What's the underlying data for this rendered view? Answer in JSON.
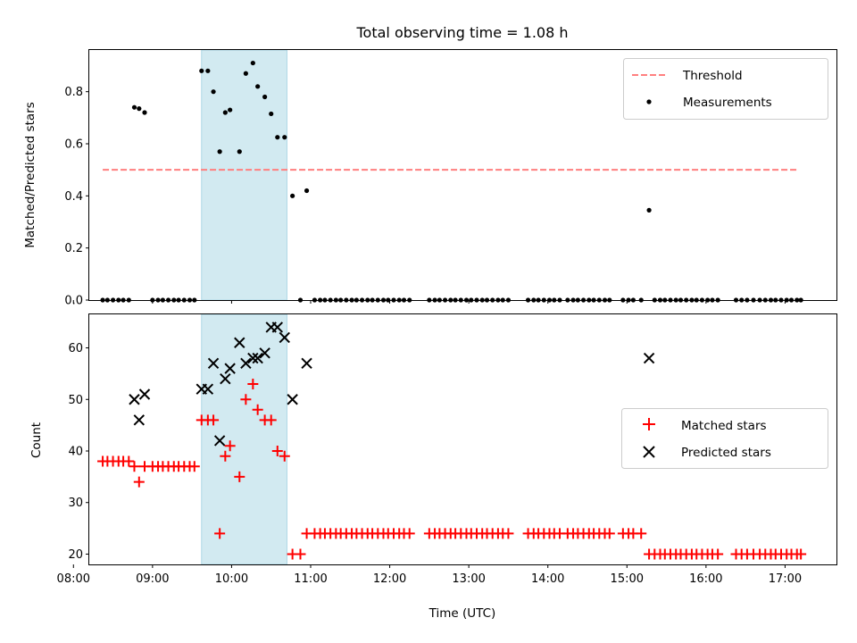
{
  "title": "Total observing time = 1.08 h",
  "colors": {
    "threshold": "#ff7f7f",
    "measurement": "#000000",
    "matched": "#ff0000",
    "predicted": "#000000",
    "shade": "#add8e6"
  },
  "chart_data": [
    {
      "type": "scatter",
      "ylabel": "Matched/Predicted stars",
      "xlabel": "",
      "xlim": [
        8.2,
        17.65
      ],
      "ylim": [
        0,
        0.96
      ],
      "yticks": [
        "0.0",
        "0.2",
        "0.4",
        "0.6",
        "0.8"
      ],
      "legend_position": "top-right",
      "shaded_span": [
        9.62,
        10.7
      ],
      "threshold": {
        "name": "Threshold",
        "y": 0.5,
        "x": [
          8.37,
          17.15
        ]
      },
      "series": [
        {
          "name": "Measurements",
          "points": [
            [
              8.37,
              0
            ],
            [
              8.43,
              0
            ],
            [
              8.5,
              0
            ],
            [
              8.57,
              0
            ],
            [
              8.63,
              0
            ],
            [
              8.7,
              0
            ],
            [
              8.77,
              0.74
            ],
            [
              8.83,
              0.735
            ],
            [
              8.9,
              0.72
            ],
            [
              9.0,
              0
            ],
            [
              9.07,
              0
            ],
            [
              9.13,
              0
            ],
            [
              9.2,
              0
            ],
            [
              9.27,
              0
            ],
            [
              9.33,
              0
            ],
            [
              9.4,
              0
            ],
            [
              9.47,
              0
            ],
            [
              9.53,
              0
            ],
            [
              9.62,
              0.88
            ],
            [
              9.7,
              0.88
            ],
            [
              9.77,
              0.8
            ],
            [
              9.85,
              0.57
            ],
            [
              9.92,
              0.72
            ],
            [
              9.98,
              0.73
            ],
            [
              10.1,
              0.57
            ],
            [
              10.18,
              0.87
            ],
            [
              10.27,
              0.91
            ],
            [
              10.33,
              0.82
            ],
            [
              10.42,
              0.78
            ],
            [
              10.5,
              0.715
            ],
            [
              10.58,
              0.625
            ],
            [
              10.67,
              0.625
            ],
            [
              10.77,
              0.4
            ],
            [
              10.87,
              0
            ],
            [
              10.95,
              0.42
            ],
            [
              11.05,
              0
            ],
            [
              11.12,
              0
            ],
            [
              11.18,
              0
            ],
            [
              11.25,
              0
            ],
            [
              11.32,
              0
            ],
            [
              11.38,
              0
            ],
            [
              11.45,
              0
            ],
            [
              11.52,
              0
            ],
            [
              11.58,
              0
            ],
            [
              11.65,
              0
            ],
            [
              11.72,
              0
            ],
            [
              11.78,
              0
            ],
            [
              11.85,
              0
            ],
            [
              11.92,
              0
            ],
            [
              11.98,
              0
            ],
            [
              12.05,
              0
            ],
            [
              12.12,
              0
            ],
            [
              12.18,
              0
            ],
            [
              12.25,
              0
            ],
            [
              12.5,
              0
            ],
            [
              12.57,
              0
            ],
            [
              12.63,
              0
            ],
            [
              12.7,
              0
            ],
            [
              12.77,
              0
            ],
            [
              12.83,
              0
            ],
            [
              12.9,
              0
            ],
            [
              12.97,
              0
            ],
            [
              13.03,
              0
            ],
            [
              13.1,
              0
            ],
            [
              13.17,
              0
            ],
            [
              13.23,
              0
            ],
            [
              13.3,
              0
            ],
            [
              13.37,
              0
            ],
            [
              13.43,
              0
            ],
            [
              13.5,
              0
            ],
            [
              13.75,
              0
            ],
            [
              13.82,
              0
            ],
            [
              13.88,
              0
            ],
            [
              13.95,
              0
            ],
            [
              14.02,
              0
            ],
            [
              14.08,
              0
            ],
            [
              14.15,
              0
            ],
            [
              14.25,
              0
            ],
            [
              14.32,
              0
            ],
            [
              14.38,
              0
            ],
            [
              14.45,
              0
            ],
            [
              14.52,
              0
            ],
            [
              14.58,
              0
            ],
            [
              14.65,
              0
            ],
            [
              14.72,
              0
            ],
            [
              14.78,
              0
            ],
            [
              14.95,
              0
            ],
            [
              15.02,
              0
            ],
            [
              15.08,
              0
            ],
            [
              15.18,
              0
            ],
            [
              15.28,
              0.345
            ],
            [
              15.35,
              0
            ],
            [
              15.42,
              0
            ],
            [
              15.48,
              0
            ],
            [
              15.55,
              0
            ],
            [
              15.62,
              0
            ],
            [
              15.68,
              0
            ],
            [
              15.75,
              0
            ],
            [
              15.82,
              0
            ],
            [
              15.88,
              0
            ],
            [
              15.95,
              0
            ],
            [
              16.02,
              0
            ],
            [
              16.08,
              0
            ],
            [
              16.15,
              0
            ],
            [
              16.38,
              0
            ],
            [
              16.45,
              0
            ],
            [
              16.52,
              0
            ],
            [
              16.6,
              0
            ],
            [
              16.68,
              0
            ],
            [
              16.75,
              0
            ],
            [
              16.82,
              0
            ],
            [
              16.88,
              0
            ],
            [
              16.95,
              0
            ],
            [
              17.02,
              0
            ],
            [
              17.08,
              0
            ],
            [
              17.15,
              0
            ],
            [
              17.2,
              0
            ]
          ]
        }
      ]
    },
    {
      "type": "scatter",
      "ylabel": "Count",
      "xlabel": "Time (UTC)",
      "xlim": [
        8.2,
        17.65
      ],
      "ylim": [
        18,
        66.5
      ],
      "yticks": [
        "20",
        "30",
        "40",
        "50",
        "60"
      ],
      "xticks": [
        "08:00",
        "09:00",
        "10:00",
        "11:00",
        "12:00",
        "13:00",
        "14:00",
        "15:00",
        "16:00",
        "17:00"
      ],
      "legend_position": "center-right",
      "shaded_span": [
        9.62,
        10.7
      ],
      "series": [
        {
          "name": "Matched stars",
          "marker": "+",
          "points": [
            [
              8.37,
              38
            ],
            [
              8.43,
              38
            ],
            [
              8.5,
              38
            ],
            [
              8.57,
              38
            ],
            [
              8.63,
              38
            ],
            [
              8.7,
              38
            ],
            [
              8.77,
              37
            ],
            [
              8.83,
              34
            ],
            [
              8.9,
              37
            ],
            [
              9.0,
              37
            ],
            [
              9.07,
              37
            ],
            [
              9.13,
              37
            ],
            [
              9.2,
              37
            ],
            [
              9.27,
              37
            ],
            [
              9.33,
              37
            ],
            [
              9.4,
              37
            ],
            [
              9.47,
              37
            ],
            [
              9.53,
              37
            ],
            [
              9.62,
              46
            ],
            [
              9.7,
              46
            ],
            [
              9.77,
              46
            ],
            [
              9.85,
              24
            ],
            [
              9.92,
              39
            ],
            [
              9.98,
              41
            ],
            [
              10.1,
              35
            ],
            [
              10.18,
              50
            ],
            [
              10.27,
              53
            ],
            [
              10.33,
              48
            ],
            [
              10.42,
              46
            ],
            [
              10.5,
              46
            ],
            [
              10.58,
              40
            ],
            [
              10.67,
              39
            ],
            [
              10.77,
              20
            ],
            [
              10.87,
              20
            ],
            [
              10.95,
              24
            ],
            [
              11.05,
              24
            ],
            [
              11.12,
              24
            ],
            [
              11.18,
              24
            ],
            [
              11.25,
              24
            ],
            [
              11.32,
              24
            ],
            [
              11.38,
              24
            ],
            [
              11.45,
              24
            ],
            [
              11.52,
              24
            ],
            [
              11.58,
              24
            ],
            [
              11.65,
              24
            ],
            [
              11.72,
              24
            ],
            [
              11.78,
              24
            ],
            [
              11.85,
              24
            ],
            [
              11.92,
              24
            ],
            [
              11.98,
              24
            ],
            [
              12.05,
              24
            ],
            [
              12.12,
              24
            ],
            [
              12.18,
              24
            ],
            [
              12.25,
              24
            ],
            [
              12.5,
              24
            ],
            [
              12.57,
              24
            ],
            [
              12.63,
              24
            ],
            [
              12.7,
              24
            ],
            [
              12.77,
              24
            ],
            [
              12.83,
              24
            ],
            [
              12.9,
              24
            ],
            [
              12.97,
              24
            ],
            [
              13.03,
              24
            ],
            [
              13.1,
              24
            ],
            [
              13.17,
              24
            ],
            [
              13.23,
              24
            ],
            [
              13.3,
              24
            ],
            [
              13.37,
              24
            ],
            [
              13.43,
              24
            ],
            [
              13.5,
              24
            ],
            [
              13.75,
              24
            ],
            [
              13.82,
              24
            ],
            [
              13.88,
              24
            ],
            [
              13.95,
              24
            ],
            [
              14.02,
              24
            ],
            [
              14.08,
              24
            ],
            [
              14.15,
              24
            ],
            [
              14.25,
              24
            ],
            [
              14.32,
              24
            ],
            [
              14.38,
              24
            ],
            [
              14.45,
              24
            ],
            [
              14.52,
              24
            ],
            [
              14.58,
              24
            ],
            [
              14.65,
              24
            ],
            [
              14.72,
              24
            ],
            [
              14.78,
              24
            ],
            [
              14.95,
              24
            ],
            [
              15.02,
              24
            ],
            [
              15.08,
              24
            ],
            [
              15.18,
              24
            ],
            [
              15.28,
              20
            ],
            [
              15.35,
              20
            ],
            [
              15.42,
              20
            ],
            [
              15.48,
              20
            ],
            [
              15.55,
              20
            ],
            [
              15.62,
              20
            ],
            [
              15.68,
              20
            ],
            [
              15.75,
              20
            ],
            [
              15.82,
              20
            ],
            [
              15.88,
              20
            ],
            [
              15.95,
              20
            ],
            [
              16.02,
              20
            ],
            [
              16.08,
              20
            ],
            [
              16.15,
              20
            ],
            [
              16.38,
              20
            ],
            [
              16.45,
              20
            ],
            [
              16.52,
              20
            ],
            [
              16.6,
              20
            ],
            [
              16.68,
              20
            ],
            [
              16.75,
              20
            ],
            [
              16.82,
              20
            ],
            [
              16.88,
              20
            ],
            [
              16.95,
              20
            ],
            [
              17.02,
              20
            ],
            [
              17.08,
              20
            ],
            [
              17.15,
              20
            ],
            [
              17.2,
              20
            ]
          ]
        },
        {
          "name": "Predicted stars",
          "marker": "x",
          "points": [
            [
              8.77,
              50
            ],
            [
              8.83,
              46
            ],
            [
              8.9,
              51
            ],
            [
              9.62,
              52
            ],
            [
              9.7,
              52
            ],
            [
              9.77,
              57
            ],
            [
              9.85,
              42
            ],
            [
              9.92,
              54
            ],
            [
              9.98,
              56
            ],
            [
              10.1,
              61
            ],
            [
              10.18,
              57
            ],
            [
              10.27,
              58
            ],
            [
              10.33,
              58
            ],
            [
              10.42,
              59
            ],
            [
              10.5,
              64
            ],
            [
              10.58,
              64
            ],
            [
              10.67,
              62
            ],
            [
              10.77,
              50
            ],
            [
              10.95,
              57
            ],
            [
              15.28,
              58
            ]
          ]
        }
      ]
    }
  ]
}
